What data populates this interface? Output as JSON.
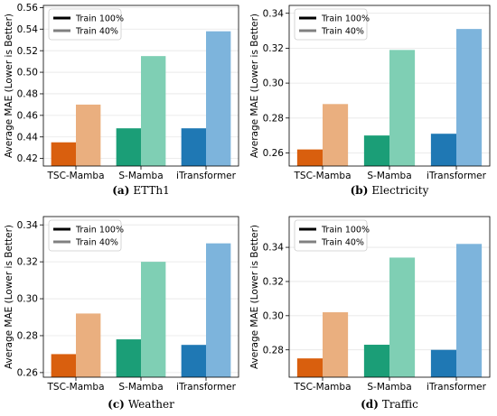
{
  "chart_data": [
    {
      "type": "bar",
      "caption_label": "(a)",
      "caption_text": "ETTh1",
      "ylabel": "Average MAE (Lower is Better)",
      "categories": [
        "TSC-Mamba",
        "S-Mamba",
        "iTransformer"
      ],
      "ylim": [
        0.413,
        0.562
      ],
      "yticks": [
        0.42,
        0.44,
        0.46,
        0.48,
        0.5,
        0.52,
        0.54,
        0.56
      ],
      "ytick_labels": [
        "0.42",
        "0.44",
        "0.46",
        "0.48",
        "0.50",
        "0.52",
        "0.54",
        "0.56"
      ],
      "grid": true,
      "legend": "top-left",
      "series": [
        {
          "name": "Train 100%",
          "values": [
            0.435,
            0.448,
            0.448
          ]
        },
        {
          "name": "Train 40%",
          "values": [
            0.47,
            0.515,
            0.538
          ]
        }
      ]
    },
    {
      "type": "bar",
      "caption_label": "(b)",
      "caption_text": "Electricity",
      "ylabel": "Average MAE (Lower is Better)",
      "categories": [
        "TSC-Mamba",
        "S-Mamba",
        "iTransformer"
      ],
      "ylim": [
        0.2525,
        0.3445
      ],
      "yticks": [
        0.26,
        0.28,
        0.3,
        0.32,
        0.34
      ],
      "ytick_labels": [
        "0.26",
        "0.28",
        "0.30",
        "0.32",
        "0.34"
      ],
      "grid": true,
      "legend": "top-left",
      "series": [
        {
          "name": "Train 100%",
          "values": [
            0.262,
            0.27,
            0.271
          ]
        },
        {
          "name": "Train 40%",
          "values": [
            0.288,
            0.319,
            0.331
          ]
        }
      ]
    },
    {
      "type": "bar",
      "caption_label": "(c)",
      "caption_text": "Weather",
      "ylabel": "Average MAE (Lower is Better)",
      "categories": [
        "TSC-Mamba",
        "S-Mamba",
        "iTransformer"
      ],
      "ylim": [
        0.2575,
        0.3445
      ],
      "yticks": [
        0.26,
        0.28,
        0.3,
        0.32,
        0.34
      ],
      "ytick_labels": [
        "0.26",
        "0.28",
        "0.30",
        "0.32",
        "0.34"
      ],
      "grid": true,
      "legend": "top-left",
      "series": [
        {
          "name": "Train 100%",
          "values": [
            0.27,
            0.278,
            0.275
          ]
        },
        {
          "name": "Train 40%",
          "values": [
            0.292,
            0.32,
            0.33
          ]
        }
      ]
    },
    {
      "type": "bar",
      "caption_label": "(d)",
      "caption_text": "Traffic",
      "ylabel": "Average MAE (Lower is Better)",
      "categories": [
        "TSC-Mamba",
        "S-Mamba",
        "iTransformer"
      ],
      "ylim": [
        0.264,
        0.358
      ],
      "yticks": [
        0.28,
        0.3,
        0.32,
        0.34
      ],
      "ytick_labels": [
        "0.28",
        "0.30",
        "0.32",
        "0.34"
      ],
      "grid": true,
      "legend": "top-left",
      "series": [
        {
          "name": "Train 100%",
          "values": [
            0.275,
            0.283,
            0.28
          ]
        },
        {
          "name": "Train 40%",
          "values": [
            0.302,
            0.334,
            0.342
          ]
        }
      ]
    }
  ],
  "colors": {
    "category_base": [
      "#d95f0e",
      "#1b9e77",
      "#1f78b4"
    ],
    "category_light": [
      "#eaaf7f",
      "#7fcfb4",
      "#7db4dc"
    ],
    "legend_solid": "#000000",
    "legend_light": "#808080",
    "grid": "#e6e6e6",
    "axis": "#000000"
  }
}
